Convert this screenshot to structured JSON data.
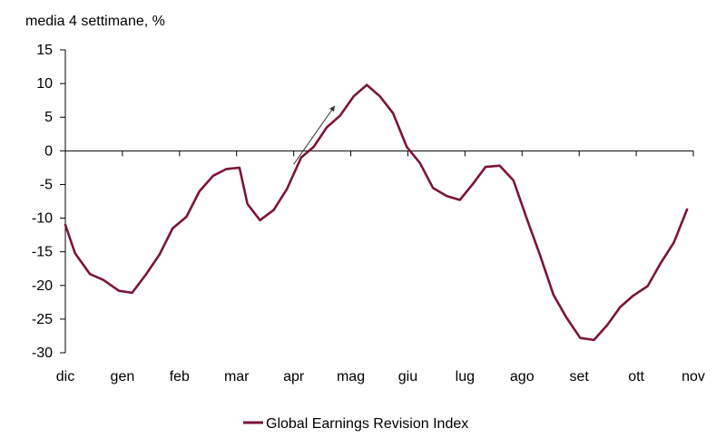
{
  "chart_data": {
    "type": "line",
    "ylabel": "media 4 settimane, %",
    "ylim": [
      -30,
      15
    ],
    "yticks": [
      15,
      10,
      5,
      0,
      -5,
      -10,
      -15,
      -20,
      -25,
      -30
    ],
    "x_tick_labels": [
      "dic",
      "gen",
      "feb",
      "mar",
      "apr",
      "mag",
      "giu",
      "lug",
      "ago",
      "set",
      "ott",
      "nov"
    ],
    "x_range": [
      0,
      11
    ],
    "grid": false,
    "legend": "bottom-center",
    "series": [
      {
        "name": "Global Earnings Revision Index",
        "color": "#7b1535",
        "x": [
          0,
          0.17,
          0.43,
          0.67,
          0.94,
          1.17,
          1.41,
          1.65,
          1.88,
          2.12,
          2.35,
          2.59,
          2.82,
          3.05,
          3.19,
          3.41,
          3.65,
          3.88,
          4.13,
          4.35,
          4.58,
          4.81,
          5.05,
          5.28,
          5.51,
          5.74,
          5.98,
          6.21,
          6.44,
          6.68,
          6.91,
          7.14,
          7.36,
          7.61,
          7.85,
          8.08,
          8.31,
          8.55,
          8.78,
          9.02,
          9.26,
          9.49,
          9.72,
          9.95,
          10.2,
          10.42,
          10.66,
          10.89
        ],
        "y": [
          -11,
          -15.2,
          -18.3,
          -19.2,
          -20.8,
          -21.1,
          -18.4,
          -15.4,
          -11.5,
          -9.8,
          -6,
          -3.7,
          -2.7,
          -2.5,
          -7.9,
          -10.3,
          -8.8,
          -5.7,
          -1,
          0.6,
          3.5,
          5.2,
          8.1,
          9.8,
          8.1,
          5.6,
          0.6,
          -1.8,
          -5.5,
          -6.7,
          -7.3,
          -4.9,
          -2.4,
          -2.2,
          -4.4,
          -10,
          -15.4,
          -21.4,
          -24.8,
          -27.8,
          -28.1,
          -25.9,
          -23.2,
          -21.5,
          -20.1,
          -16.8,
          -13.6,
          -8.7
        ]
      }
    ],
    "annotations": [
      {
        "type": "arrow",
        "from": [
          4,
          -2
        ],
        "to": [
          4.72,
          6.7
        ]
      }
    ]
  }
}
